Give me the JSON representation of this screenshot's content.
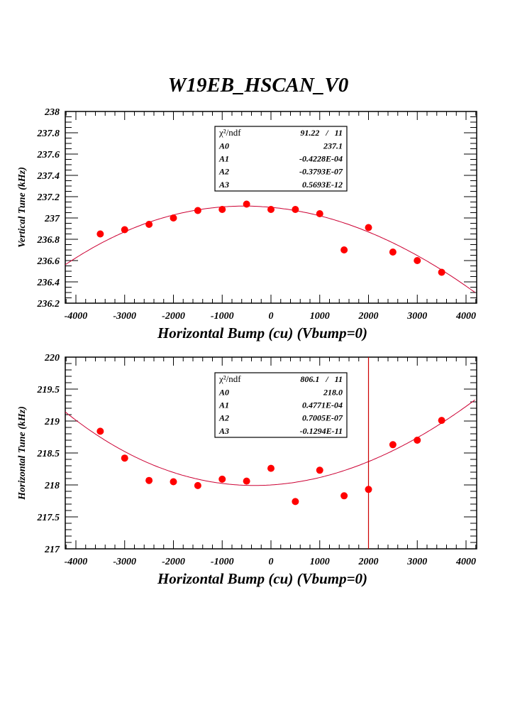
{
  "title": "W19EB_HSCAN_V0",
  "colors": {
    "marker": "#ff0000",
    "fit_line": "#cc0033",
    "vline": "#cc0000",
    "axis": "#000000"
  },
  "chart_data": [
    {
      "type": "scatter",
      "title": "",
      "xlabel": "Horizontal Bump (cu) (Vbump=0)",
      "ylabel": "Vertical Tune (kHz)",
      "xlim": [
        -4218,
        4218
      ],
      "ylim": [
        236.2,
        238
      ],
      "xticks": [
        -4000,
        -3000,
        -2000,
        -1000,
        0,
        1000,
        2000,
        3000,
        4000
      ],
      "xtick_labels": [
        "-4000",
        "-3000",
        "-2000",
        "-1000",
        "0",
        "1000",
        "2000",
        "3000",
        "4000"
      ],
      "yticks": [
        236.2,
        236.4,
        236.6,
        236.8,
        237,
        237.2,
        237.4,
        237.6,
        237.8,
        238
      ],
      "ytick_labels": [
        "236.2",
        "236.4",
        "236.6",
        "236.8",
        "237",
        "237.2",
        "237.4",
        "237.6",
        "237.8",
        "238"
      ],
      "grid": false,
      "x": [
        -3500,
        -3000,
        -2500,
        -2000,
        -1500,
        -1000,
        -500,
        0,
        500,
        1000,
        1500,
        2000,
        2500,
        3000,
        3500
      ],
      "y": [
        236.85,
        236.89,
        236.94,
        237.0,
        237.07,
        237.08,
        237.13,
        237.08,
        237.08,
        237.04,
        236.7,
        236.91,
        236.68,
        236.6,
        236.49
      ],
      "fit": {
        "function": "pol3",
        "coefficients": [
          237.1,
          -4.228e-05,
          -3.793e-08,
          5.693e-13
        ]
      },
      "stats_box": {
        "rows": [
          {
            "label": "χ²/ndf",
            "value": "91.22   /   11"
          },
          {
            "label": "A0",
            "value": "237.1"
          },
          {
            "label": "A1",
            "value": "-0.4228E-04"
          },
          {
            "label": "A2",
            "value": "-0.3793E-07"
          },
          {
            "label": "A3",
            "value": "0.5693E-12"
          }
        ]
      },
      "vline_x": null
    },
    {
      "type": "scatter",
      "title": "",
      "xlabel": "Horizontal Bump (cu) (Vbump=0)",
      "ylabel": "Horizontal Tune (kHz)",
      "xlim": [
        -4218,
        4218
      ],
      "ylim": [
        217,
        220
      ],
      "xticks": [
        -4000,
        -3000,
        -2000,
        -1000,
        0,
        1000,
        2000,
        3000,
        4000
      ],
      "xtick_labels": [
        "-4000",
        "-3000",
        "-2000",
        "-1000",
        "0",
        "1000",
        "2000",
        "3000",
        "4000"
      ],
      "yticks": [
        217,
        217.5,
        218,
        218.5,
        219,
        219.5,
        220
      ],
      "ytick_labels": [
        "217",
        "217.5",
        "218",
        "218.5",
        "219",
        "219.5",
        "220"
      ],
      "grid": false,
      "x": [
        -3500,
        -3000,
        -2500,
        -2000,
        -1500,
        -1000,
        -500,
        0,
        500,
        1000,
        1500,
        2000,
        2500,
        3000,
        3500
      ],
      "y": [
        218.84,
        218.42,
        218.07,
        218.05,
        217.99,
        218.09,
        218.06,
        218.26,
        217.74,
        218.23,
        217.83,
        217.93,
        218.63,
        218.7,
        219.01
      ],
      "fit": {
        "function": "pol3",
        "coefficients": [
          218.0,
          4.771e-05,
          7.005e-08,
          -1.294e-12
        ]
      },
      "stats_box": {
        "rows": [
          {
            "label": "χ²/ndf",
            "value": "806.1   /   11"
          },
          {
            "label": "A0",
            "value": "218.0"
          },
          {
            "label": "A1",
            "value": "0.4771E-04"
          },
          {
            "label": "A2",
            "value": "0.7005E-07"
          },
          {
            "label": "A3",
            "value": "-0.1294E-11"
          }
        ]
      },
      "vline_x": 2000
    }
  ]
}
